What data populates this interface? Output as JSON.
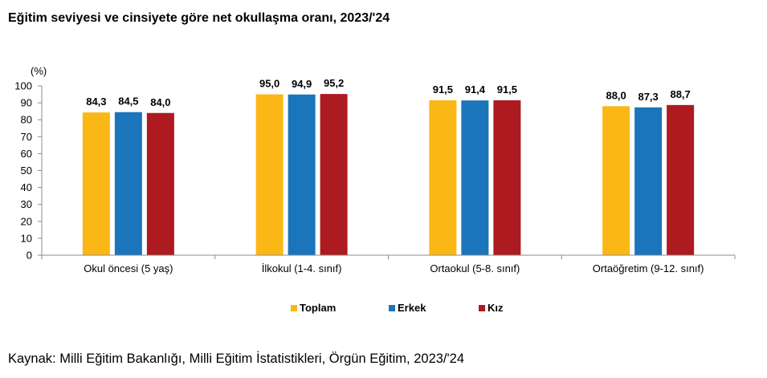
{
  "title": "Eğitim seviyesi ve cinsiyete göre net okullaşma oranı, 2023/'24",
  "source": "Kaynak: Milli Eğitim Bakanlığı, Milli Eğitim İstatistikleri, Örgün Eğitim, 2023/'24",
  "chart_data": {
    "type": "bar",
    "ylabel": "(%)",
    "ylim": [
      0,
      100
    ],
    "yticks": [
      0,
      10,
      20,
      30,
      40,
      50,
      60,
      70,
      80,
      90,
      100
    ],
    "categories": [
      "Okul öncesi (5 yaş)",
      "İlkokul (1-4. sınıf)",
      "Ortaokul (5-8. sınıf)",
      "Ortaöğretim (9-12. sınıf)"
    ],
    "series": [
      {
        "name": "Toplam",
        "color": "#fbb715",
        "values": [
          84.3,
          95.0,
          91.5,
          88.0
        ],
        "labels": [
          "84,3",
          "95,0",
          "91,5",
          "88,0"
        ]
      },
      {
        "name": "Erkek",
        "color": "#1b75bb",
        "values": [
          84.5,
          94.9,
          91.4,
          87.3
        ],
        "labels": [
          "84,5",
          "94,9",
          "91,4",
          "87,3"
        ]
      },
      {
        "name": "Kız",
        "color": "#ad1a1f",
        "values": [
          84.0,
          95.2,
          91.5,
          88.7
        ],
        "labels": [
          "84,0",
          "95,2",
          "91,5",
          "88,7"
        ]
      }
    ],
    "grid": false,
    "legend_position": "bottom"
  }
}
